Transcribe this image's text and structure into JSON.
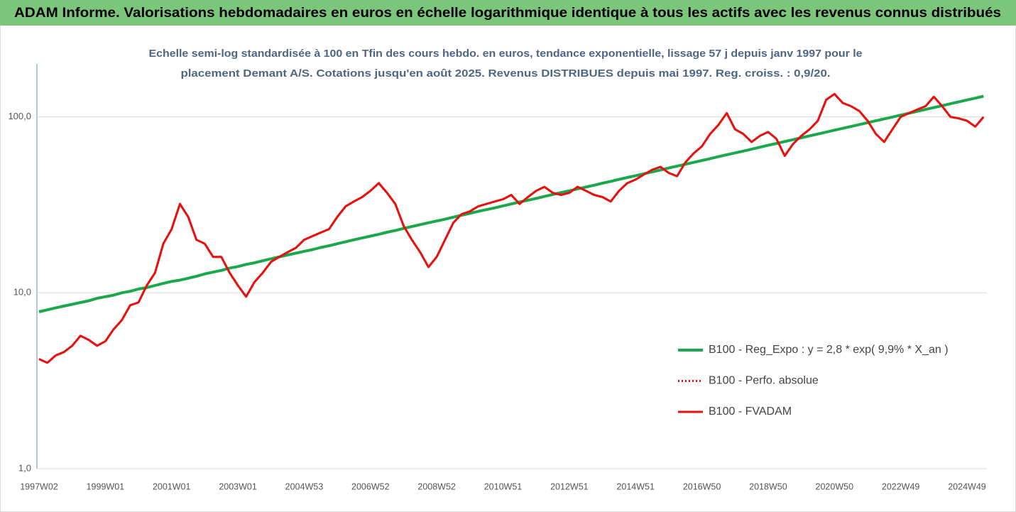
{
  "chart_data": {
    "type": "line",
    "title": "ADAM Informe. Valorisations hebdomadaires en euros en échelle logarithmique identique à tous les actifs avec les revenus connus distribués",
    "subtitle": [
      "Echelle semi-log standardisée à 100 en Tfin des cours hebdo. en euros, tendance exponentielle, lissage 57 j depuis janv 1997 pour le",
      "placement Demant A/S. Cotations jusqu'en août 2025. Revenus DISTRIBUES depuis mai 1997. Reg. croiss. : 0,9/20."
    ],
    "log_scale": true,
    "grid": true,
    "legend": "right",
    "ylim": [
      1,
      200
    ],
    "yticks": [
      {
        "value": 1,
        "label": "1,0"
      },
      {
        "value": 10,
        "label": "10,0"
      },
      {
        "value": 100,
        "label": "100,0"
      }
    ],
    "categories": [
      "1997W02",
      null,
      null,
      null,
      null,
      null,
      null,
      null,
      "1999W01",
      null,
      null,
      null,
      null,
      null,
      null,
      null,
      "2001W01",
      null,
      null,
      null,
      null,
      null,
      null,
      null,
      "2003W01",
      null,
      null,
      null,
      null,
      null,
      null,
      null,
      "2004W53",
      null,
      null,
      null,
      null,
      null,
      null,
      null,
      "2006W52",
      null,
      null,
      null,
      null,
      null,
      null,
      null,
      "2008W52",
      null,
      null,
      null,
      null,
      null,
      null,
      null,
      "2010W51",
      null,
      null,
      null,
      null,
      null,
      null,
      null,
      "2012W51",
      null,
      null,
      null,
      null,
      null,
      null,
      null,
      "2014W51",
      null,
      null,
      null,
      null,
      null,
      null,
      null,
      "2016W50",
      null,
      null,
      null,
      null,
      null,
      null,
      null,
      "2018W50",
      null,
      null,
      null,
      null,
      null,
      null,
      null,
      "2020W50",
      null,
      null,
      null,
      null,
      null,
      null,
      null,
      "2022W49",
      null,
      null,
      null,
      null,
      null,
      null,
      null,
      "2024W49",
      null,
      null
    ],
    "series": [
      {
        "name": "B100 - Reg_Expo : y = 2,8 * exp( 9,9% *  X_an )",
        "color": "#1aa84a",
        "style": "solid",
        "width": 4,
        "values": [
          7.8,
          8.0,
          8.2,
          8.4,
          8.6,
          8.8,
          9.0,
          9.3,
          9.5,
          9.7,
          10.0,
          10.2,
          10.5,
          10.7,
          11.0,
          11.3,
          11.6,
          11.8,
          12.1,
          12.4,
          12.8,
          13.1,
          13.4,
          13.8,
          14.1,
          14.5,
          14.8,
          15.2,
          15.6,
          16.0,
          16.4,
          16.8,
          17.2,
          17.6,
          18.1,
          18.5,
          19.0,
          19.5,
          20.0,
          20.5,
          21.0,
          21.5,
          22.1,
          22.6,
          23.2,
          23.8,
          24.4,
          25.0,
          25.6,
          26.2,
          26.9,
          27.6,
          28.3,
          29.0,
          29.7,
          30.4,
          31.2,
          32.0,
          32.8,
          33.6,
          34.4,
          35.3,
          36.2,
          37.1,
          38.0,
          39.0,
          39.9,
          40.9,
          42.0,
          43.0,
          44.1,
          45.2,
          46.3,
          47.5,
          48.7,
          49.9,
          51.2,
          52.5,
          53.8,
          55.1,
          56.5,
          57.9,
          59.4,
          60.9,
          62.4,
          63.9,
          65.5,
          67.2,
          68.9,
          70.6,
          72.4,
          74.2,
          76.1,
          78.0,
          79.9,
          81.9,
          84.0,
          86.1,
          88.2,
          90.4,
          92.7,
          95.0,
          97.4,
          99.8,
          102.3,
          104.9,
          107.5,
          110.2,
          113.0,
          115.8,
          118.7,
          121.7,
          124.7,
          127.8,
          131.0
        ]
      },
      {
        "name": "B100 - Perfo. absolue",
        "color": "#e8100f",
        "style": "dotted",
        "width": 3,
        "values": [
          4.2,
          4.0,
          4.4,
          4.6,
          5.0,
          5.7,
          5.4,
          5.0,
          5.3,
          6.2,
          7.0,
          8.5,
          8.8,
          11,
          13,
          19,
          23,
          32,
          27,
          20,
          19,
          16,
          16,
          13,
          11,
          9.5,
          11.5,
          13,
          15,
          16,
          17,
          18,
          20,
          21,
          22,
          23,
          27,
          31,
          33,
          35,
          38,
          42,
          37,
          32,
          24,
          20,
          17,
          14,
          16,
          20,
          25,
          28,
          29,
          31,
          32,
          33,
          34,
          36,
          32,
          35,
          38,
          40,
          37,
          36,
          37,
          40,
          38,
          36,
          35,
          33,
          38,
          42,
          44,
          47,
          50,
          52,
          48,
          46,
          55,
          62,
          68,
          80,
          90,
          105,
          85,
          80,
          72,
          78,
          82,
          75,
          60,
          70,
          78,
          85,
          95,
          125,
          135,
          120,
          115,
          108,
          95,
          80,
          72,
          85,
          100,
          105,
          110,
          115,
          130,
          115,
          100,
          98,
          95,
          88,
          100
        ]
      },
      {
        "name": "B100 - FVADAM",
        "color": "#e8100f",
        "style": "solid",
        "width": 3,
        "values": [
          4.2,
          4.0,
          4.4,
          4.6,
          5.0,
          5.7,
          5.4,
          5.0,
          5.3,
          6.2,
          7.0,
          8.5,
          8.8,
          11,
          13,
          19,
          23,
          32,
          27,
          20,
          19,
          16,
          16,
          13,
          11,
          9.5,
          11.5,
          13,
          15,
          16,
          17,
          18,
          20,
          21,
          22,
          23,
          27,
          31,
          33,
          35,
          38,
          42,
          37,
          32,
          24,
          20,
          17,
          14,
          16,
          20,
          25,
          28,
          29,
          31,
          32,
          33,
          34,
          36,
          32,
          35,
          38,
          40,
          37,
          36,
          37,
          40,
          38,
          36,
          35,
          33,
          38,
          42,
          44,
          47,
          50,
          52,
          48,
          46,
          55,
          62,
          68,
          80,
          90,
          105,
          85,
          80,
          72,
          78,
          82,
          75,
          60,
          70,
          78,
          85,
          95,
          125,
          135,
          120,
          115,
          108,
          95,
          80,
          72,
          85,
          100,
          105,
          110,
          115,
          130,
          115,
          100,
          98,
          95,
          88,
          100
        ]
      }
    ]
  }
}
